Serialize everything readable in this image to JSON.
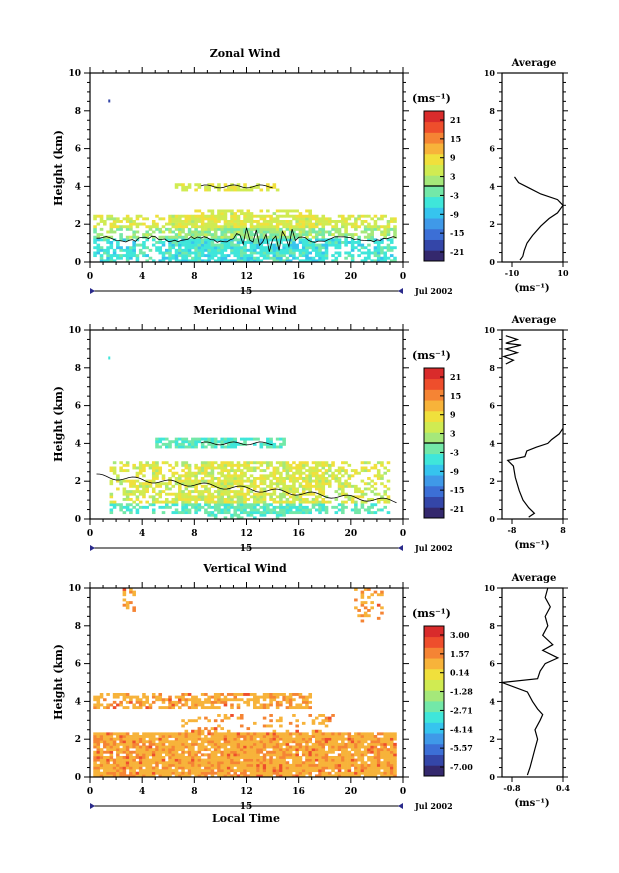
{
  "colorbar_unit": "(ms⁻¹)",
  "average_unit": "(ms⁻¹)",
  "date_label": "Jul 2002",
  "day_label": "15",
  "bottom_xlabel": "Local Time",
  "colors": [
    "#34286d",
    "#3446a8",
    "#3c6fd6",
    "#3f99e8",
    "#36c4ee",
    "#3fe6da",
    "#73e8a8",
    "#a5e87a",
    "#d0eb52",
    "#f0e03c",
    "#f7b33a",
    "#f58434",
    "#ee4e2c",
    "#d92b2b"
  ],
  "chart_data": [
    {
      "type": "heatmap",
      "title": "Zonal Wind",
      "ylabel": "Height (km)",
      "xlabel": "",
      "x_ticks": [
        "0",
        "4",
        "8",
        "12",
        "16",
        "20",
        "0"
      ],
      "y_ticks": [
        "0",
        "2",
        "4",
        "6",
        "8",
        "10"
      ],
      "xlim": [
        0,
        24
      ],
      "ylim": [
        0,
        10
      ],
      "colorbar_ticks": [
        "21",
        "15",
        "9",
        "3",
        "-3",
        "-9",
        "-15",
        "-21"
      ],
      "colorbar_range": [
        -24,
        24
      ],
      "contour_level": 0,
      "average": {
        "title": "Average",
        "x_ticks": [
          "-10",
          "10"
        ],
        "xlim": [
          -12,
          10
        ],
        "profile": [
          [
            -5.5,
            0.1
          ],
          [
            -4.5,
            0.3
          ],
          [
            -4,
            0.6
          ],
          [
            -3,
            1
          ],
          [
            -1,
            1.4
          ],
          [
            2,
            1.9
          ],
          [
            5,
            2.3
          ],
          [
            8,
            2.6
          ],
          [
            10,
            3
          ],
          [
            8,
            3.3
          ],
          [
            2,
            3.6
          ],
          [
            -2,
            3.9
          ],
          [
            -6,
            4.2
          ],
          [
            -7.5,
            4.5
          ]
        ]
      }
    },
    {
      "type": "heatmap",
      "title": "Meridional Wind",
      "ylabel": "Height (km)",
      "xlabel": "",
      "x_ticks": [
        "0",
        "4",
        "8",
        "12",
        "16",
        "20",
        "0"
      ],
      "y_ticks": [
        "0",
        "2",
        "4",
        "6",
        "8",
        "10"
      ],
      "xlim": [
        0,
        24
      ],
      "ylim": [
        0,
        10
      ],
      "colorbar_ticks": [
        "21",
        "15",
        "9",
        "3",
        "-3",
        "-9",
        "-15",
        "-21"
      ],
      "colorbar_range": [
        -24,
        24
      ],
      "contour_level": 0,
      "average": {
        "title": "Average",
        "x_ticks": [
          "-8",
          "8"
        ],
        "xlim": [
          -8,
          8
        ],
        "profile": [
          [
            -1,
            0.1
          ],
          [
            0.5,
            0.3
          ],
          [
            -1,
            0.6
          ],
          [
            -2.5,
            1
          ],
          [
            -3.5,
            1.5
          ],
          [
            -4.5,
            2.2
          ],
          [
            -5,
            2.8
          ],
          [
            -6.5,
            3.1
          ],
          [
            -2,
            3.3
          ],
          [
            -1.5,
            3.6
          ],
          [
            1,
            3.8
          ],
          [
            4,
            4
          ],
          [
            5,
            4.2
          ],
          [
            7,
            4.5
          ],
          [
            8,
            4.8
          ]
        ],
        "profile2": [
          [
            -7,
            8.2
          ],
          [
            -5,
            8.4
          ],
          [
            -7.5,
            8.6
          ],
          [
            -4,
            8.8
          ],
          [
            -7,
            9
          ],
          [
            -3,
            9.2
          ],
          [
            -7,
            9.3
          ],
          [
            -4,
            9.5
          ],
          [
            -7,
            9.7
          ]
        ]
      }
    },
    {
      "type": "heatmap",
      "title": "Vertical Wind",
      "ylabel": "Height (km)",
      "xlabel": "Local Time",
      "x_ticks": [
        "0",
        "4",
        "8",
        "12",
        "16",
        "20",
        "0"
      ],
      "y_ticks": [
        "0",
        "2",
        "4",
        "6",
        "8",
        "10"
      ],
      "xlim": [
        0,
        24
      ],
      "ylim": [
        0,
        10
      ],
      "colorbar_ticks": [
        "3.00",
        "1.57",
        "0.14",
        "-1.28",
        "-2.71",
        "-4.14",
        "-5.57",
        "-7.00"
      ],
      "colorbar_range": [
        -7.7,
        3.7
      ],
      "average": {
        "title": "Average",
        "x_ticks": [
          "-0.8",
          "0.4"
        ],
        "xlim": [
          -0.8,
          0.4
        ],
        "profile": [
          [
            -0.3,
            0.1
          ],
          [
            -0.25,
            0.5
          ],
          [
            -0.2,
            1
          ],
          [
            -0.15,
            1.5
          ],
          [
            -0.1,
            2
          ],
          [
            -0.15,
            2.5
          ],
          [
            -0.05,
            3
          ],
          [
            0,
            3.3
          ],
          [
            -0.1,
            3.6
          ],
          [
            -0.2,
            4
          ],
          [
            -0.3,
            4.5
          ],
          [
            -0.8,
            5
          ],
          [
            -0.1,
            5.2
          ],
          [
            -0.05,
            5.6
          ],
          [
            0.05,
            6
          ],
          [
            0.3,
            6.3
          ],
          [
            0,
            6.7
          ],
          [
            0.2,
            7
          ],
          [
            0,
            7.5
          ],
          [
            0.1,
            8
          ],
          [
            0.05,
            8.5
          ],
          [
            0.15,
            9
          ],
          [
            0.05,
            9.5
          ],
          [
            0.1,
            10
          ]
        ]
      }
    }
  ]
}
